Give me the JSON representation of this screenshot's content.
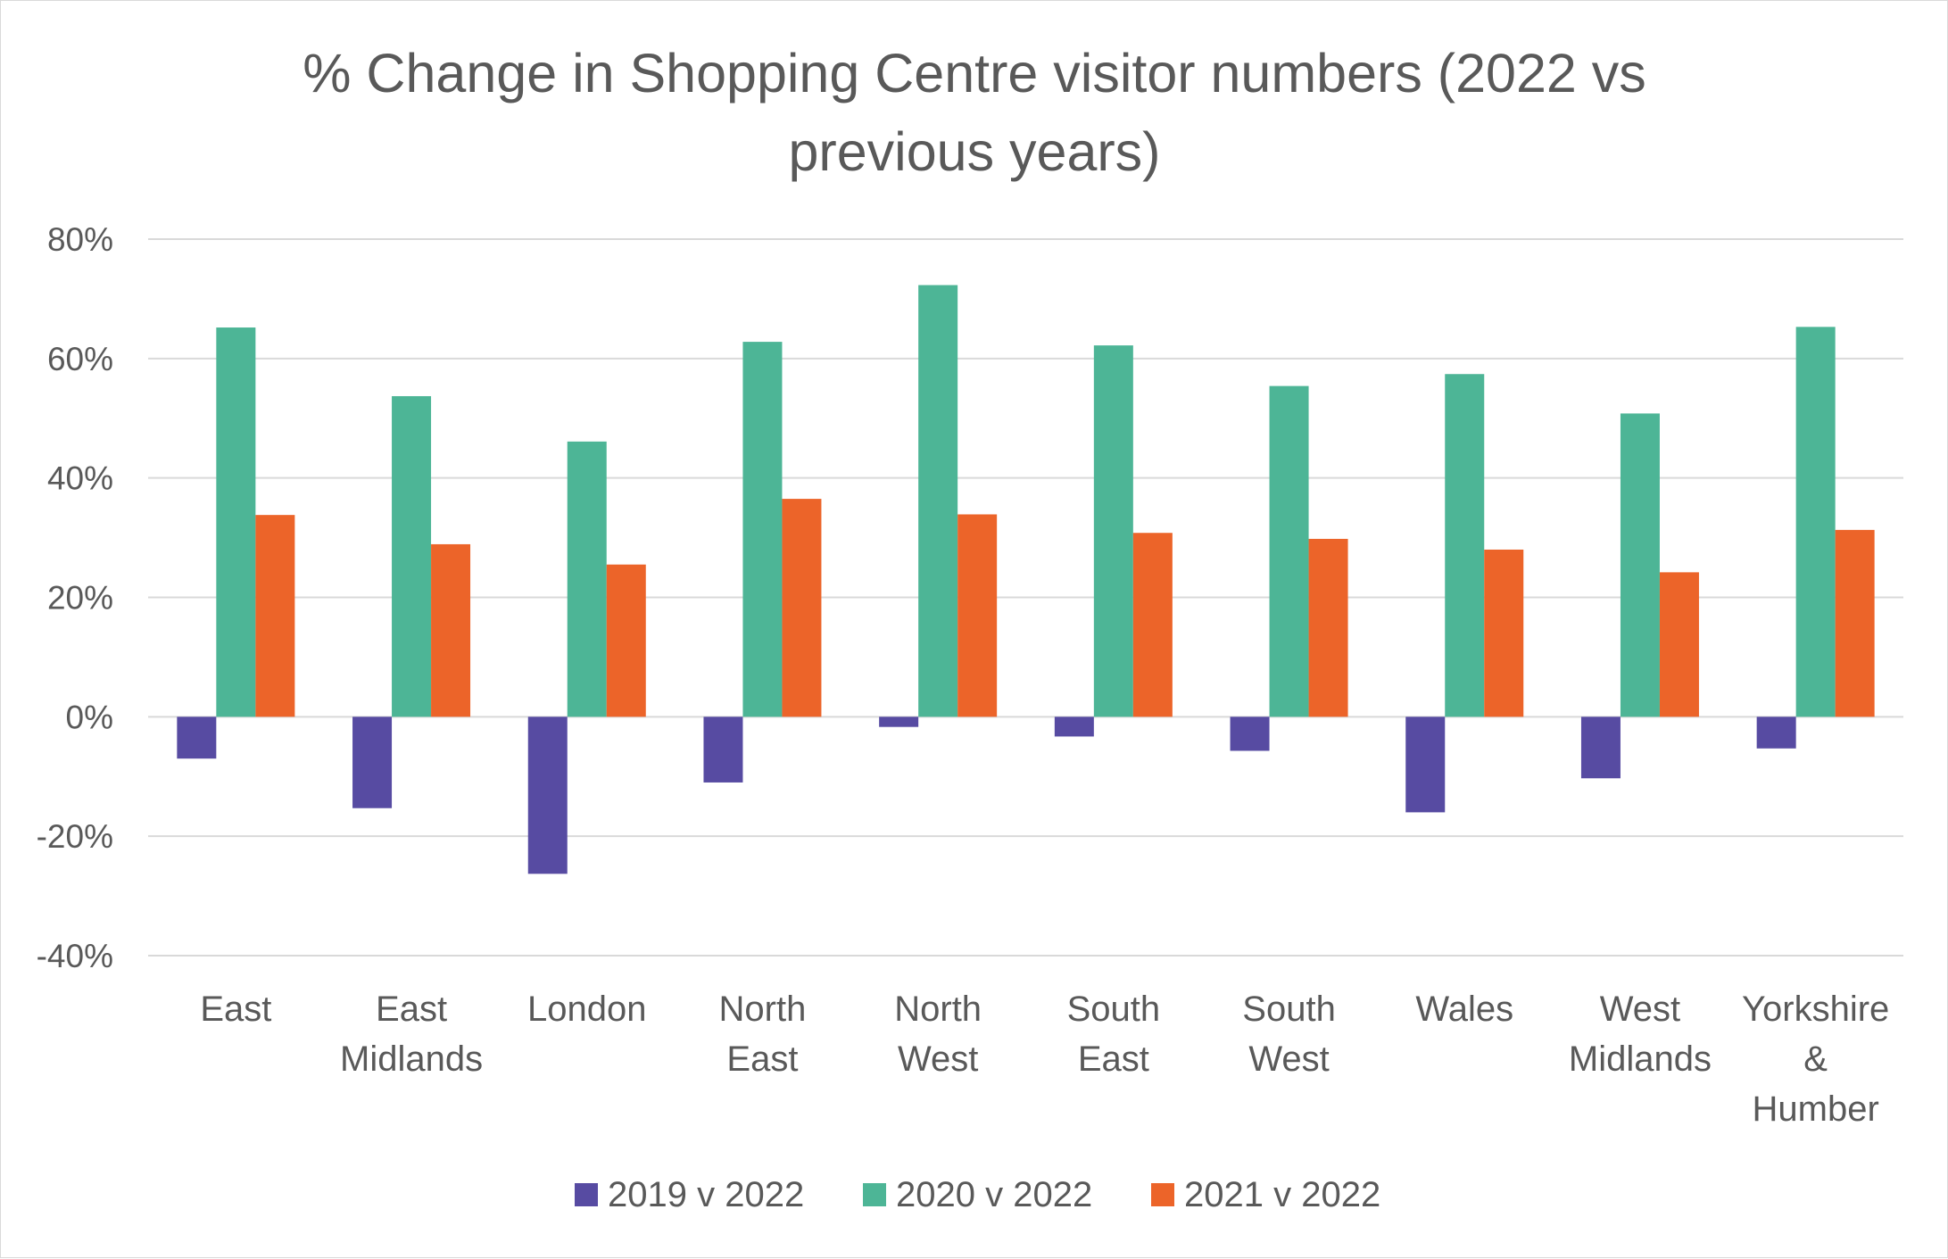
{
  "chart_data": {
    "type": "bar",
    "title": "% Change in Shopping Centre visitor numbers (2022 vs previous years)",
    "title_lines": [
      "% Change in Shopping Centre visitor numbers (2022 vs",
      "previous years)"
    ],
    "xlabel": "",
    "ylabel": "",
    "ylim": [
      -40,
      80
    ],
    "yticks": [
      80,
      60,
      40,
      20,
      0,
      -20,
      -40
    ],
    "ytick_labels": [
      "80%",
      "60%",
      "40%",
      "20%",
      "0%",
      "-20%",
      "-40%"
    ],
    "grid": true,
    "legend_position": "bottom",
    "categories": [
      "East",
      "East Midlands",
      "London",
      "North East",
      "North West",
      "South East",
      "South West",
      "Wales",
      "West Midlands",
      "Yorkshire & Humber"
    ],
    "category_label_lines": [
      [
        "East"
      ],
      [
        "East",
        "Midlands"
      ],
      [
        "London"
      ],
      [
        "North",
        "East"
      ],
      [
        "North",
        "West"
      ],
      [
        "South",
        "East"
      ],
      [
        "South",
        "West"
      ],
      [
        "Wales"
      ],
      [
        "West",
        "Midlands"
      ],
      [
        "Yorkshire",
        "&",
        "Humber"
      ]
    ],
    "series": [
      {
        "name": "2019 v 2022",
        "color": "#574ba2",
        "values": [
          -7,
          -15.3,
          -26.3,
          -11,
          -1.7,
          -3.3,
          -5.7,
          -16,
          -10.3,
          -5.3
        ]
      },
      {
        "name": "2020 v 2022",
        "color": "#4db596",
        "values": [
          65.2,
          53.7,
          46.1,
          62.8,
          72.3,
          62.2,
          55.4,
          57.4,
          50.8,
          65.3
        ]
      },
      {
        "name": "2021 v 2022",
        "color": "#ec6429",
        "values": [
          33.8,
          28.9,
          25.5,
          36.5,
          33.9,
          30.8,
          29.8,
          28,
          24.2,
          31.3
        ]
      }
    ]
  }
}
